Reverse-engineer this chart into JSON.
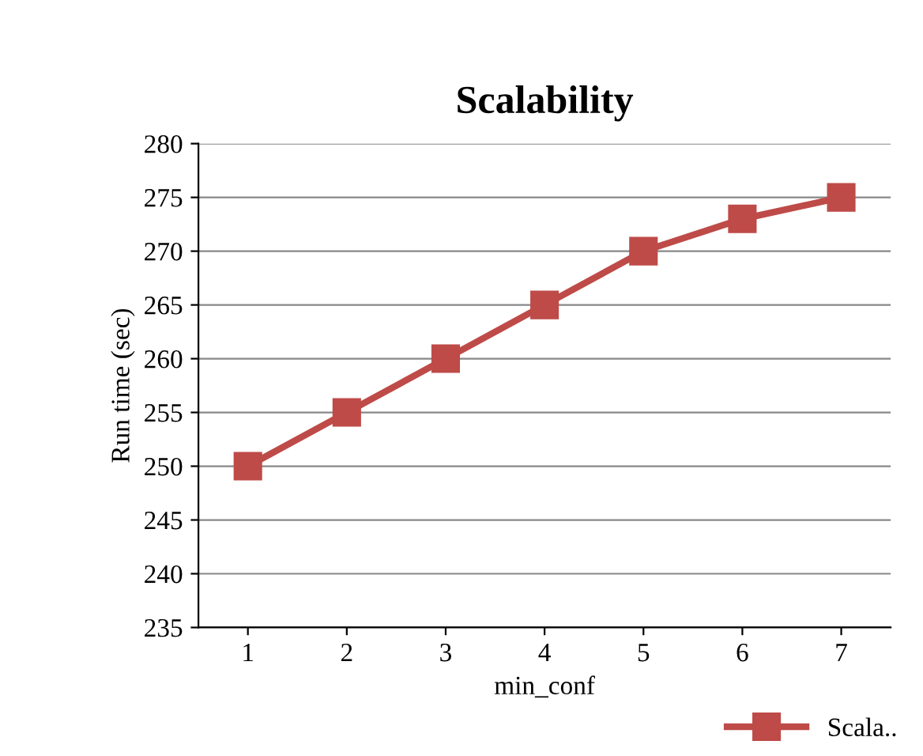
{
  "chart_data": {
    "type": "line",
    "title": "Scalability",
    "xlabel": "min_conf",
    "ylabel": "Run time (sec)",
    "categories": [
      "1",
      "2",
      "3",
      "4",
      "5",
      "6",
      "7"
    ],
    "series": [
      {
        "name": "Scala..",
        "color": "#be4b48",
        "values": [
          250,
          255,
          260,
          265,
          270,
          273,
          275
        ]
      }
    ],
    "ylim": [
      235,
      280
    ],
    "yticks": [
      235,
      240,
      245,
      250,
      255,
      260,
      265,
      270,
      275,
      280
    ],
    "grid": "y",
    "legend": "bottom right",
    "marker": "square",
    "line_style": "solid"
  }
}
